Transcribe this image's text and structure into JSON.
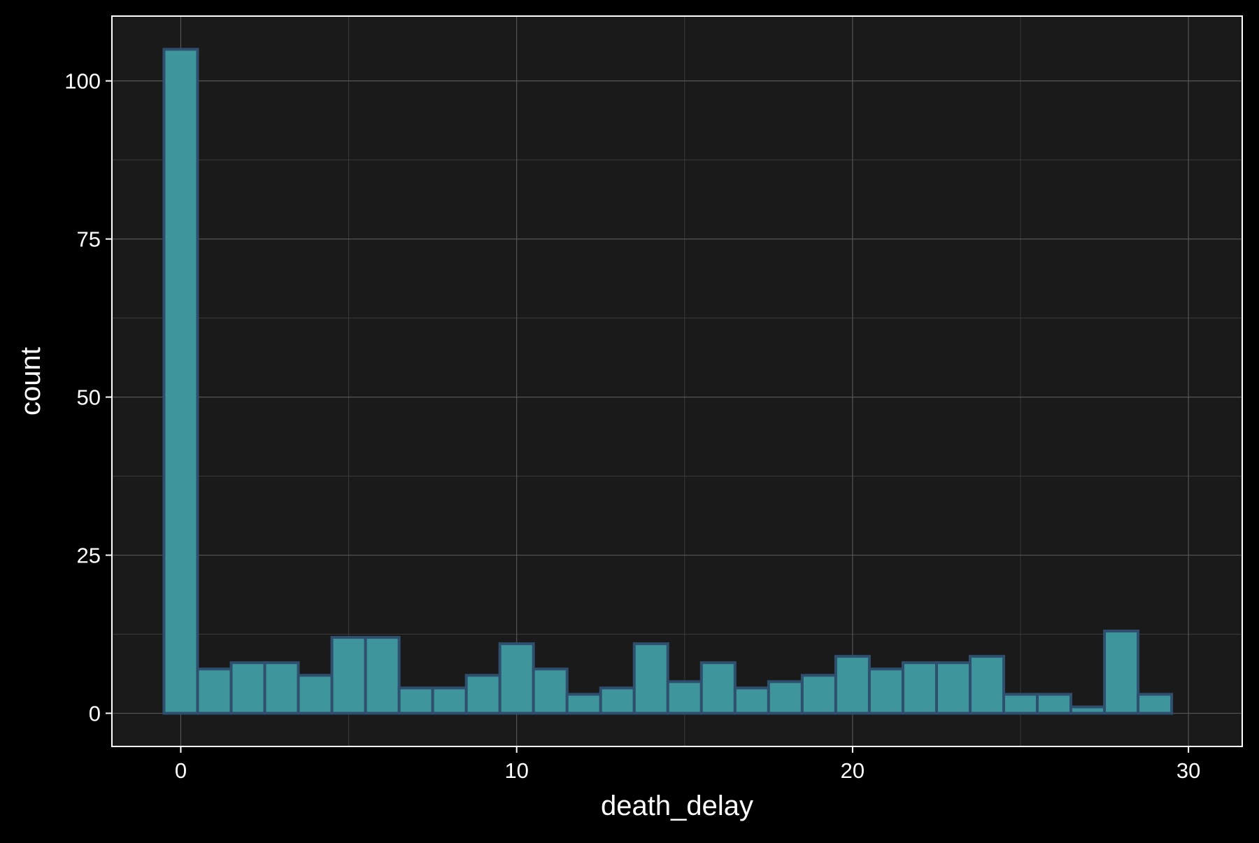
{
  "chart_data": {
    "type": "bar",
    "xlabel": "death_delay",
    "ylabel": "count",
    "x": [
      0,
      1,
      2,
      3,
      4,
      5,
      6,
      7,
      8,
      9,
      10,
      11,
      12,
      13,
      14,
      15,
      16,
      17,
      18,
      19,
      20,
      21,
      22,
      23,
      24,
      25,
      26,
      27,
      28,
      29,
      30
    ],
    "values": [
      105,
      7,
      8,
      8,
      6,
      12,
      12,
      4,
      4,
      6,
      11,
      7,
      3,
      4,
      11,
      5,
      8,
      4,
      5,
      6,
      9,
      7,
      8,
      8,
      9,
      3,
      3,
      1,
      13,
      3,
      0
    ],
    "bin_width": 1,
    "xlim": [
      -2.05,
      31.6
    ],
    "ylim": [
      -5.25,
      110.25
    ],
    "x_ticks": [
      0,
      10,
      20,
      30
    ],
    "x_tick_labels": [
      "0",
      "10",
      "20",
      "30"
    ],
    "y_ticks": [
      0,
      25,
      50,
      75,
      100
    ],
    "y_tick_labels": [
      "0",
      "25",
      "50",
      "75",
      "100"
    ],
    "grid": true,
    "legend": false,
    "colors": {
      "background": "#000000",
      "panel": "#1a1a1a",
      "panel_border": "#ffffff",
      "grid_major": "#555555",
      "grid_minor": "#3a3a3a",
      "bar_fill": "#3f959c",
      "bar_stroke": "#2f4f6f",
      "text": "#ffffff"
    }
  }
}
